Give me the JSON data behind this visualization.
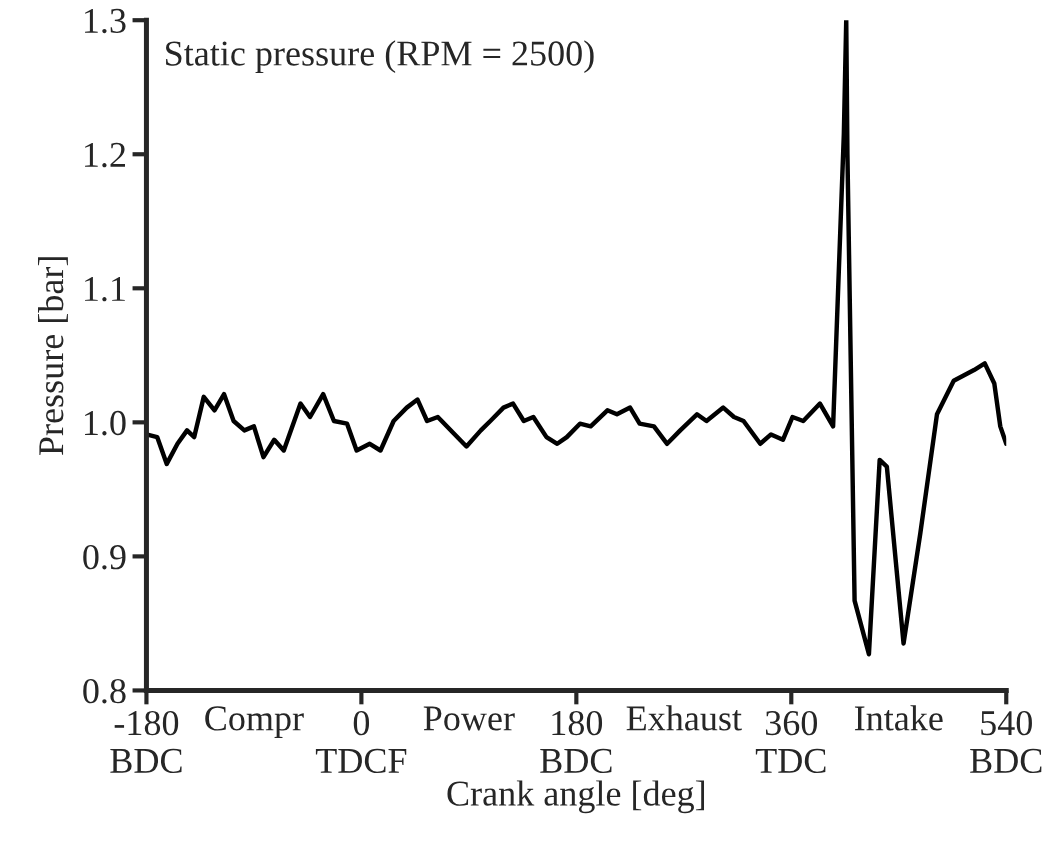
{
  "chart_data": {
    "type": "line",
    "title": "Static pressure (RPM = 2500)",
    "xlabel": "Crank angle [deg]",
    "ylabel": "Pressure [bar]",
    "xlim": [
      -180,
      540
    ],
    "ylim": [
      0.8,
      1.3
    ],
    "xticks": [
      {
        "value": -180,
        "label": "-180\nBDC"
      },
      {
        "value": 0,
        "label": "0\nTDCF"
      },
      {
        "value": 180,
        "label": "180\nBDC"
      },
      {
        "value": 360,
        "label": "360\nTDC"
      },
      {
        "value": 540,
        "label": "540\nBDC"
      }
    ],
    "yticks": [
      {
        "value": 0.8,
        "label": "0.8"
      },
      {
        "value": 0.9,
        "label": "0.9"
      },
      {
        "value": 1.0,
        "label": "1.0"
      },
      {
        "value": 1.1,
        "label": "1.1"
      },
      {
        "value": 1.2,
        "label": "1.2"
      },
      {
        "value": 1.3,
        "label": "1.3"
      }
    ],
    "annotations": [
      "Compr",
      "Power",
      "Exhaust",
      "Intake"
    ],
    "grid": false,
    "legend": false,
    "line_style": "solid",
    "marker": "none",
    "series": [
      {
        "color": "#000000",
        "x": [
          -180,
          -171,
          -163,
          -154,
          -146,
          -140,
          -132,
          -123,
          -115,
          -107,
          -98,
          -90,
          -82,
          -73,
          -65,
          -51,
          -43,
          -32,
          -23,
          -12,
          -4,
          7,
          16,
          27,
          38,
          47,
          55,
          64,
          77,
          88,
          100,
          108,
          119,
          127,
          136,
          144,
          155,
          164,
          172,
          183,
          192,
          206,
          214,
          225,
          233,
          245,
          256,
          267,
          281,
          289,
          303,
          312,
          320,
          334,
          343,
          353,
          361,
          370,
          384,
          395,
          404,
          406,
          407,
          413,
          419,
          425,
          434,
          440,
          454,
          468,
          482,
          496,
          513,
          522,
          530,
          535,
          540
        ],
        "values": [
          0.991,
          0.989,
          0.969,
          0.984,
          0.994,
          0.989,
          1.019,
          1.009,
          1.021,
          1.001,
          0.994,
          0.997,
          0.974,
          0.987,
          0.979,
          1.014,
          1.004,
          1.021,
          1.001,
          0.999,
          0.979,
          0.984,
          0.979,
          1.001,
          1.011,
          1.017,
          1.001,
          1.004,
          0.992,
          0.982,
          0.994,
          1.001,
          1.011,
          1.014,
          1.001,
          1.004,
          0.989,
          0.984,
          0.989,
          0.999,
          0.997,
          1.009,
          1.006,
          1.011,
          0.999,
          0.997,
          0.984,
          0.994,
          1.006,
          1.001,
          1.011,
          1.004,
          1.001,
          0.984,
          0.991,
          0.987,
          1.004,
          1.001,
          1.014,
          0.997,
          1.215,
          1.3,
          1.2,
          0.867,
          0.847,
          0.827,
          0.972,
          0.967,
          0.835,
          0.917,
          1.006,
          1.031,
          1.039,
          1.044,
          1.029,
          0.997,
          0.984
        ]
      }
    ]
  }
}
